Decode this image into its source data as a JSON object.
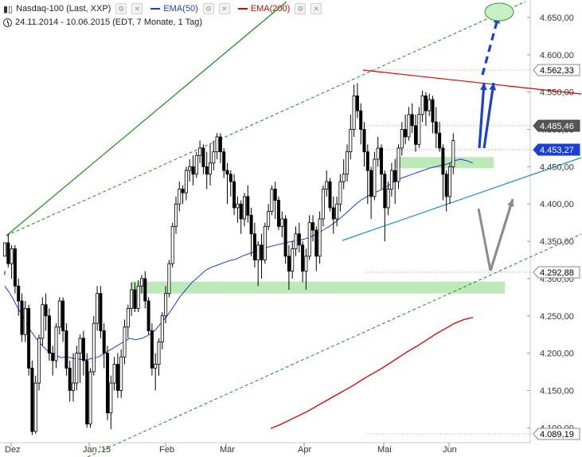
{
  "header": {
    "symbol_label": "Nasdaq-100 (Last, XXP)",
    "ema50_label": "EMA(50)",
    "ema200_label": "EMA(200)",
    "range_label": "24.11.2014 - 10.06.2015 (EDT, 7 Monate, 1 Tag)",
    "icons": [
      "candlestick-icon",
      "settings-icon",
      "close-icon",
      "clock-icon"
    ]
  },
  "colors": {
    "ema50": "#1a3fd6",
    "ema200": "#d60000",
    "trend_green": "#1a8a1a",
    "support_zone": "#b6e6b0",
    "arrow_blue": "#1a3fd6",
    "arrow_gray": "#8c8c8c"
  },
  "chart_data": {
    "type": "candlestick",
    "ylim": [
      4080,
      4665
    ],
    "y_ticks": [
      "4.100,00",
      "4.150,00",
      "4.200,00",
      "4.250,00",
      "4.300,00",
      "4.350,00",
      "4.400,00",
      "4.450,00",
      "4.500,00",
      "4.550,00",
      "4.600,00",
      "4.650,00"
    ],
    "x_ticks": [
      "Dez",
      "Jan '15",
      "Feb",
      "Mär",
      "Apr",
      "Mai",
      "Jun"
    ],
    "price_tags": [
      "4.562,33",
      "4.485,46",
      "4.453,27",
      "4.292,88",
      "4.089,19"
    ],
    "ema50": [
      4290,
      4278,
      4262,
      4248,
      4232,
      4220,
      4210,
      4202,
      4198,
      4194,
      4195,
      4193,
      4192,
      4191,
      4193,
      4195,
      4200,
      4205,
      4210,
      4215,
      4220,
      4218,
      4220,
      4224,
      4230,
      4240,
      4250,
      4262,
      4275,
      4285,
      4295,
      4302,
      4310,
      4315,
      4318,
      4321,
      4324,
      4326,
      4330,
      4333,
      4336,
      4339,
      4342,
      4344,
      4346,
      4348,
      4350,
      4351,
      4353,
      4356,
      4360,
      4365,
      4370,
      4376,
      4383,
      4390,
      4398,
      4405,
      4410,
      4414,
      4418,
      4422,
      4428,
      4433,
      4436,
      4439,
      4442,
      4445,
      4448,
      4450,
      4452,
      4454,
      4458,
      4460,
      4458,
      4455
    ],
    "ema200": [
      4099,
      4104,
      4110,
      4116,
      4122,
      4129,
      4136,
      4143,
      4150,
      4157,
      4165,
      4172,
      4179,
      4187,
      4195,
      4203,
      4210,
      4218,
      4226,
      4233,
      4240,
      4245,
      4248
    ],
    "candles": [
      [
        4330,
        4348,
        4310,
        4305
      ],
      [
        4348,
        4320,
        4360,
        4315
      ],
      [
        4320,
        4340,
        4345,
        4300
      ],
      [
        4340,
        4290,
        4345,
        4280
      ],
      [
        4290,
        4270,
        4300,
        4250
      ],
      [
        4270,
        4225,
        4280,
        4215
      ],
      [
        4225,
        4260,
        4270,
        4215
      ],
      [
        4260,
        4180,
        4265,
        4170
      ],
      [
        4180,
        4095,
        4190,
        4090
      ],
      [
        4095,
        4160,
        4170,
        4092
      ],
      [
        4160,
        4220,
        4225,
        4150
      ],
      [
        4220,
        4265,
        4275,
        4210
      ],
      [
        4265,
        4250,
        4280,
        4230
      ],
      [
        4250,
        4200,
        4260,
        4190
      ],
      [
        4200,
        4190,
        4210,
        4170
      ],
      [
        4190,
        4235,
        4240,
        4180
      ],
      [
        4235,
        4270,
        4275,
        4225
      ],
      [
        4270,
        4230,
        4275,
        4215
      ],
      [
        4230,
        4180,
        4240,
        4170
      ],
      [
        4180,
        4150,
        4190,
        4135
      ],
      [
        4150,
        4160,
        4200,
        4135
      ],
      [
        4160,
        4200,
        4210,
        4150
      ],
      [
        4200,
        4220,
        4225,
        4160
      ],
      [
        4220,
        4190,
        4230,
        4170
      ],
      [
        4190,
        4105,
        4200,
        4100
      ],
      [
        4105,
        4175,
        4180,
        4100
      ],
      [
        4175,
        4240,
        4250,
        4170
      ],
      [
        4240,
        4280,
        4290,
        4230
      ],
      [
        4280,
        4230,
        4290,
        4220
      ],
      [
        4230,
        4200,
        4240,
        4180
      ],
      [
        4200,
        4120,
        4210,
        4110
      ],
      [
        4120,
        4160,
        4170,
        4098
      ],
      [
        4160,
        4185,
        4195,
        4150
      ],
      [
        4185,
        4150,
        4200,
        4140
      ],
      [
        4150,
        4195,
        4205,
        4140
      ],
      [
        4195,
        4235,
        4245,
        4185
      ],
      [
        4235,
        4260,
        4265,
        4220
      ],
      [
        4260,
        4285,
        4295,
        4250
      ],
      [
        4285,
        4260,
        4295,
        4255
      ],
      [
        4260,
        4290,
        4298,
        4255
      ],
      [
        4290,
        4300,
        4305,
        4280
      ],
      [
        4300,
        4270,
        4310,
        4260
      ],
      [
        4270,
        4230,
        4275,
        4225
      ],
      [
        4230,
        4180,
        4240,
        4170
      ],
      [
        4180,
        4185,
        4200,
        4150
      ],
      [
        4185,
        4215,
        4220,
        4170
      ],
      [
        4215,
        4250,
        4255,
        4205
      ],
      [
        4250,
        4280,
        4290,
        4240
      ],
      [
        4280,
        4320,
        4325,
        4275
      ],
      [
        4320,
        4370,
        4375,
        4315
      ],
      [
        4370,
        4400,
        4410,
        4360
      ],
      [
        4400,
        4420,
        4430,
        4390
      ],
      [
        4420,
        4415,
        4425,
        4400
      ],
      [
        4415,
        4445,
        4450,
        4405
      ],
      [
        4445,
        4450,
        4460,
        4430
      ],
      [
        4450,
        4440,
        4465,
        4425
      ],
      [
        4440,
        4465,
        4470,
        4435
      ],
      [
        4465,
        4475,
        4485,
        4455
      ],
      [
        4475,
        4450,
        4480,
        4440
      ],
      [
        4450,
        4440,
        4470,
        4420
      ],
      [
        4440,
        4455,
        4480,
        4425
      ],
      [
        4455,
        4470,
        4485,
        4445
      ],
      [
        4470,
        4490,
        4495,
        4460
      ],
      [
        4490,
        4470,
        4495,
        4455
      ],
      [
        4470,
        4445,
        4475,
        4435
      ],
      [
        4445,
        4440,
        4455,
        4400
      ],
      [
        4440,
        4430,
        4445,
        4410
      ],
      [
        4430,
        4395,
        4440,
        4385
      ],
      [
        4395,
        4400,
        4410,
        4375
      ],
      [
        4400,
        4380,
        4405,
        4360
      ],
      [
        4380,
        4410,
        4415,
        4370
      ],
      [
        4410,
        4385,
        4425,
        4375
      ],
      [
        4385,
        4360,
        4395,
        4330
      ],
      [
        4360,
        4325,
        4375,
        4315
      ],
      [
        4325,
        4345,
        4350,
        4290
      ],
      [
        4345,
        4325,
        4360,
        4300
      ],
      [
        4325,
        4370,
        4375,
        4320
      ],
      [
        4370,
        4390,
        4400,
        4365
      ],
      [
        4390,
        4420,
        4425,
        4385
      ],
      [
        4420,
        4405,
        4430,
        4380
      ],
      [
        4405,
        4370,
        4410,
        4365
      ],
      [
        4370,
        4380,
        4390,
        4355
      ],
      [
        4380,
        4330,
        4385,
        4320
      ],
      [
        4330,
        4310,
        4345,
        4285
      ],
      [
        4310,
        4340,
        4350,
        4300
      ],
      [
        4340,
        4360,
        4370,
        4330
      ],
      [
        4360,
        4345,
        4375,
        4335
      ],
      [
        4345,
        4310,
        4350,
        4295
      ],
      [
        4310,
        4330,
        4340,
        4285
      ],
      [
        4330,
        4375,
        4385,
        4325
      ],
      [
        4375,
        4365,
        4385,
        4350
      ],
      [
        4365,
        4330,
        4370,
        4310
      ],
      [
        4330,
        4380,
        4390,
        4320
      ],
      [
        4380,
        4420,
        4425,
        4370
      ],
      [
        4420,
        4430,
        4445,
        4410
      ],
      [
        4430,
        4395,
        4435,
        4390
      ],
      [
        4395,
        4380,
        4410,
        4360
      ],
      [
        4380,
        4400,
        4410,
        4370
      ],
      [
        4400,
        4430,
        4440,
        4390
      ],
      [
        4430,
        4440,
        4460,
        4420
      ],
      [
        4440,
        4470,
        4480,
        4430
      ],
      [
        4470,
        4500,
        4520,
        4460
      ],
      [
        4500,
        4545,
        4560,
        4490
      ],
      [
        4545,
        4525,
        4562,
        4515
      ],
      [
        4525,
        4500,
        4535,
        4480
      ],
      [
        4500,
        4470,
        4510,
        4450
      ],
      [
        4470,
        4445,
        4480,
        4400
      ],
      [
        4445,
        4410,
        4450,
        4380
      ],
      [
        4410,
        4460,
        4470,
        4405
      ],
      [
        4460,
        4475,
        4490,
        4450
      ],
      [
        4475,
        4440,
        4480,
        4420
      ],
      [
        4440,
        4395,
        4445,
        4350
      ],
      [
        4395,
        4420,
        4430,
        4385
      ],
      [
        4420,
        4445,
        4455,
        4410
      ],
      [
        4445,
        4430,
        4460,
        4400
      ],
      [
        4430,
        4475,
        4480,
        4420
      ],
      [
        4475,
        4500,
        4510,
        4465
      ],
      [
        4500,
        4490,
        4520,
        4480
      ],
      [
        4490,
        4520,
        4530,
        4485
      ],
      [
        4520,
        4505,
        4535,
        4495
      ],
      [
        4505,
        4480,
        4520,
        4470
      ],
      [
        4480,
        4520,
        4530,
        4475
      ],
      [
        4520,
        4545,
        4552,
        4510
      ],
      [
        4545,
        4525,
        4550,
        4505
      ],
      [
        4525,
        4540,
        4548,
        4518
      ],
      [
        4540,
        4510,
        4545,
        4495
      ],
      [
        4510,
        4495,
        4530,
        4475
      ],
      [
        4495,
        4475,
        4510,
        4470
      ],
      [
        4475,
        4440,
        4480,
        4405
      ],
      [
        4440,
        4410,
        4445,
        4390
      ],
      [
        4410,
        4450,
        4455,
        4400
      ],
      [
        4450,
        4485,
        4495,
        4440
      ]
    ],
    "annotations": {
      "upper_green_channel_dashed": [
        [
          0,
          4340
        ],
        [
          140,
          4660
        ]
      ],
      "lower_green_channel_dashed": [
        [
          24,
          4083
        ],
        [
          140,
          4345
        ]
      ],
      "upper_green_trend_solid": [
        [
          0,
          4340
        ],
        [
          74,
          4660
        ]
      ],
      "red_resistance_line": [
        [
          104,
          4562
        ],
        [
          140,
          4530
        ]
      ],
      "blue_support_line": [
        [
          96,
          4330
        ],
        [
          140,
          4460
        ]
      ],
      "support_zone_1": [
        [
          37,
          4280
        ],
        [
          140,
          4296
        ]
      ],
      "support_zone_2": [
        [
          114,
          4448
        ],
        [
          135,
          4463
        ]
      ],
      "target_circle": [
        134,
        4645
      ]
    }
  }
}
